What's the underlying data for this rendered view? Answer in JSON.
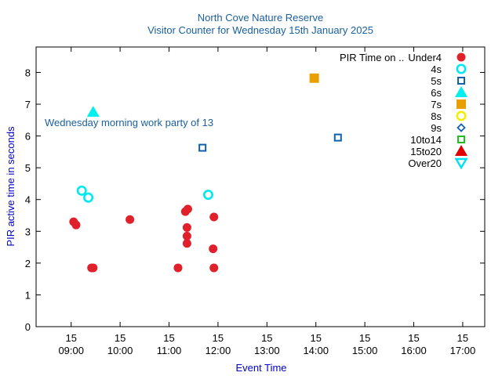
{
  "chart_data": {
    "type": "scatter",
    "title": "North Cove Nature Reserve",
    "subtitle": "Visitor Counter for Wednesday 15th January 2025",
    "xlabel": "Event Time",
    "ylabel": "PIR active time in seconds",
    "x_ticks": [
      {
        "t": 540,
        "day": "15",
        "time": "09:00"
      },
      {
        "t": 600,
        "day": "15",
        "time": "10:00"
      },
      {
        "t": 660,
        "day": "15",
        "time": "11:00"
      },
      {
        "t": 720,
        "day": "15",
        "time": "12:00"
      },
      {
        "t": 780,
        "day": "15",
        "time": "13:00"
      },
      {
        "t": 840,
        "day": "15",
        "time": "14:00"
      },
      {
        "t": 900,
        "day": "15",
        "time": "15:00"
      },
      {
        "t": 960,
        "day": "15",
        "time": "16:00"
      },
      {
        "t": 1020,
        "day": "15",
        "time": "17:00"
      }
    ],
    "xlim": [
      "08:17",
      "17:27"
    ],
    "xlim_min": [
      497,
      1047
    ],
    "ylim": [
      0,
      8.8
    ],
    "y_ticks": [
      0,
      1,
      2,
      3,
      4,
      5,
      6,
      7,
      8
    ],
    "grid": false,
    "legend_title": "PIR Time on ..",
    "legend_position": "top-right",
    "annotation": {
      "text": "Wednesday morning work party of 13"
    },
    "series": [
      {
        "name": "Under4",
        "marker": "circle-filled",
        "color": "#e0202a",
        "points": [
          {
            "x": "09:03",
            "t": 543,
            "y": 3.3
          },
          {
            "x": "09:06",
            "t": 546,
            "y": 3.2
          },
          {
            "x": "09:25",
            "t": 565,
            "y": 1.85
          },
          {
            "x": "09:27",
            "t": 567,
            "y": 1.85
          },
          {
            "x": "10:12",
            "t": 612,
            "y": 3.37
          },
          {
            "x": "11:11",
            "t": 671,
            "y": 1.85
          },
          {
            "x": "11:20",
            "t": 680,
            "y": 3.62
          },
          {
            "x": "11:23",
            "t": 683,
            "y": 3.7
          },
          {
            "x": "11:22",
            "t": 682,
            "y": 3.12
          },
          {
            "x": "11:22",
            "t": 682,
            "y": 2.85
          },
          {
            "x": "11:22",
            "t": 682,
            "y": 2.62
          },
          {
            "x": "11:55",
            "t": 715,
            "y": 3.45
          },
          {
            "x": "11:54",
            "t": 714,
            "y": 2.45
          },
          {
            "x": "11:55",
            "t": 715,
            "y": 1.85
          }
        ]
      },
      {
        "name": "4s",
        "marker": "circle-open",
        "color": "#00e8f0",
        "points": [
          {
            "x": "09:13",
            "t": 553,
            "y": 4.28
          },
          {
            "x": "09:21",
            "t": 561,
            "y": 4.06
          },
          {
            "x": "11:48",
            "t": 708,
            "y": 4.15
          }
        ]
      },
      {
        "name": "5s",
        "marker": "square-open",
        "color": "#1060b0",
        "points": [
          {
            "x": "11:41",
            "t": 701,
            "y": 5.63
          },
          {
            "x": "14:27",
            "t": 867,
            "y": 5.95
          }
        ]
      },
      {
        "name": "6s",
        "marker": "triangle-filled",
        "color": "#00f0f0",
        "points": [
          {
            "x": "09:27",
            "t": 567,
            "y": 6.75
          }
        ]
      },
      {
        "name": "7s",
        "marker": "square-filled",
        "color": "#e8a000",
        "points": [
          {
            "x": "13:58",
            "t": 838,
            "y": 7.82
          }
        ]
      },
      {
        "name": "8s",
        "marker": "circle-open",
        "color": "#f0f000",
        "points": []
      },
      {
        "name": "9s",
        "marker": "diamond-open",
        "color": "#1060b0",
        "points": []
      },
      {
        "name": "10to14",
        "marker": "square-open",
        "color": "#20c020",
        "points": []
      },
      {
        "name": "15to20",
        "marker": "triangle-filled",
        "color": "#e00000",
        "points": []
      },
      {
        "name": "Over20",
        "marker": "triangle-down-open",
        "color": "#00e0f0",
        "points": []
      }
    ]
  }
}
